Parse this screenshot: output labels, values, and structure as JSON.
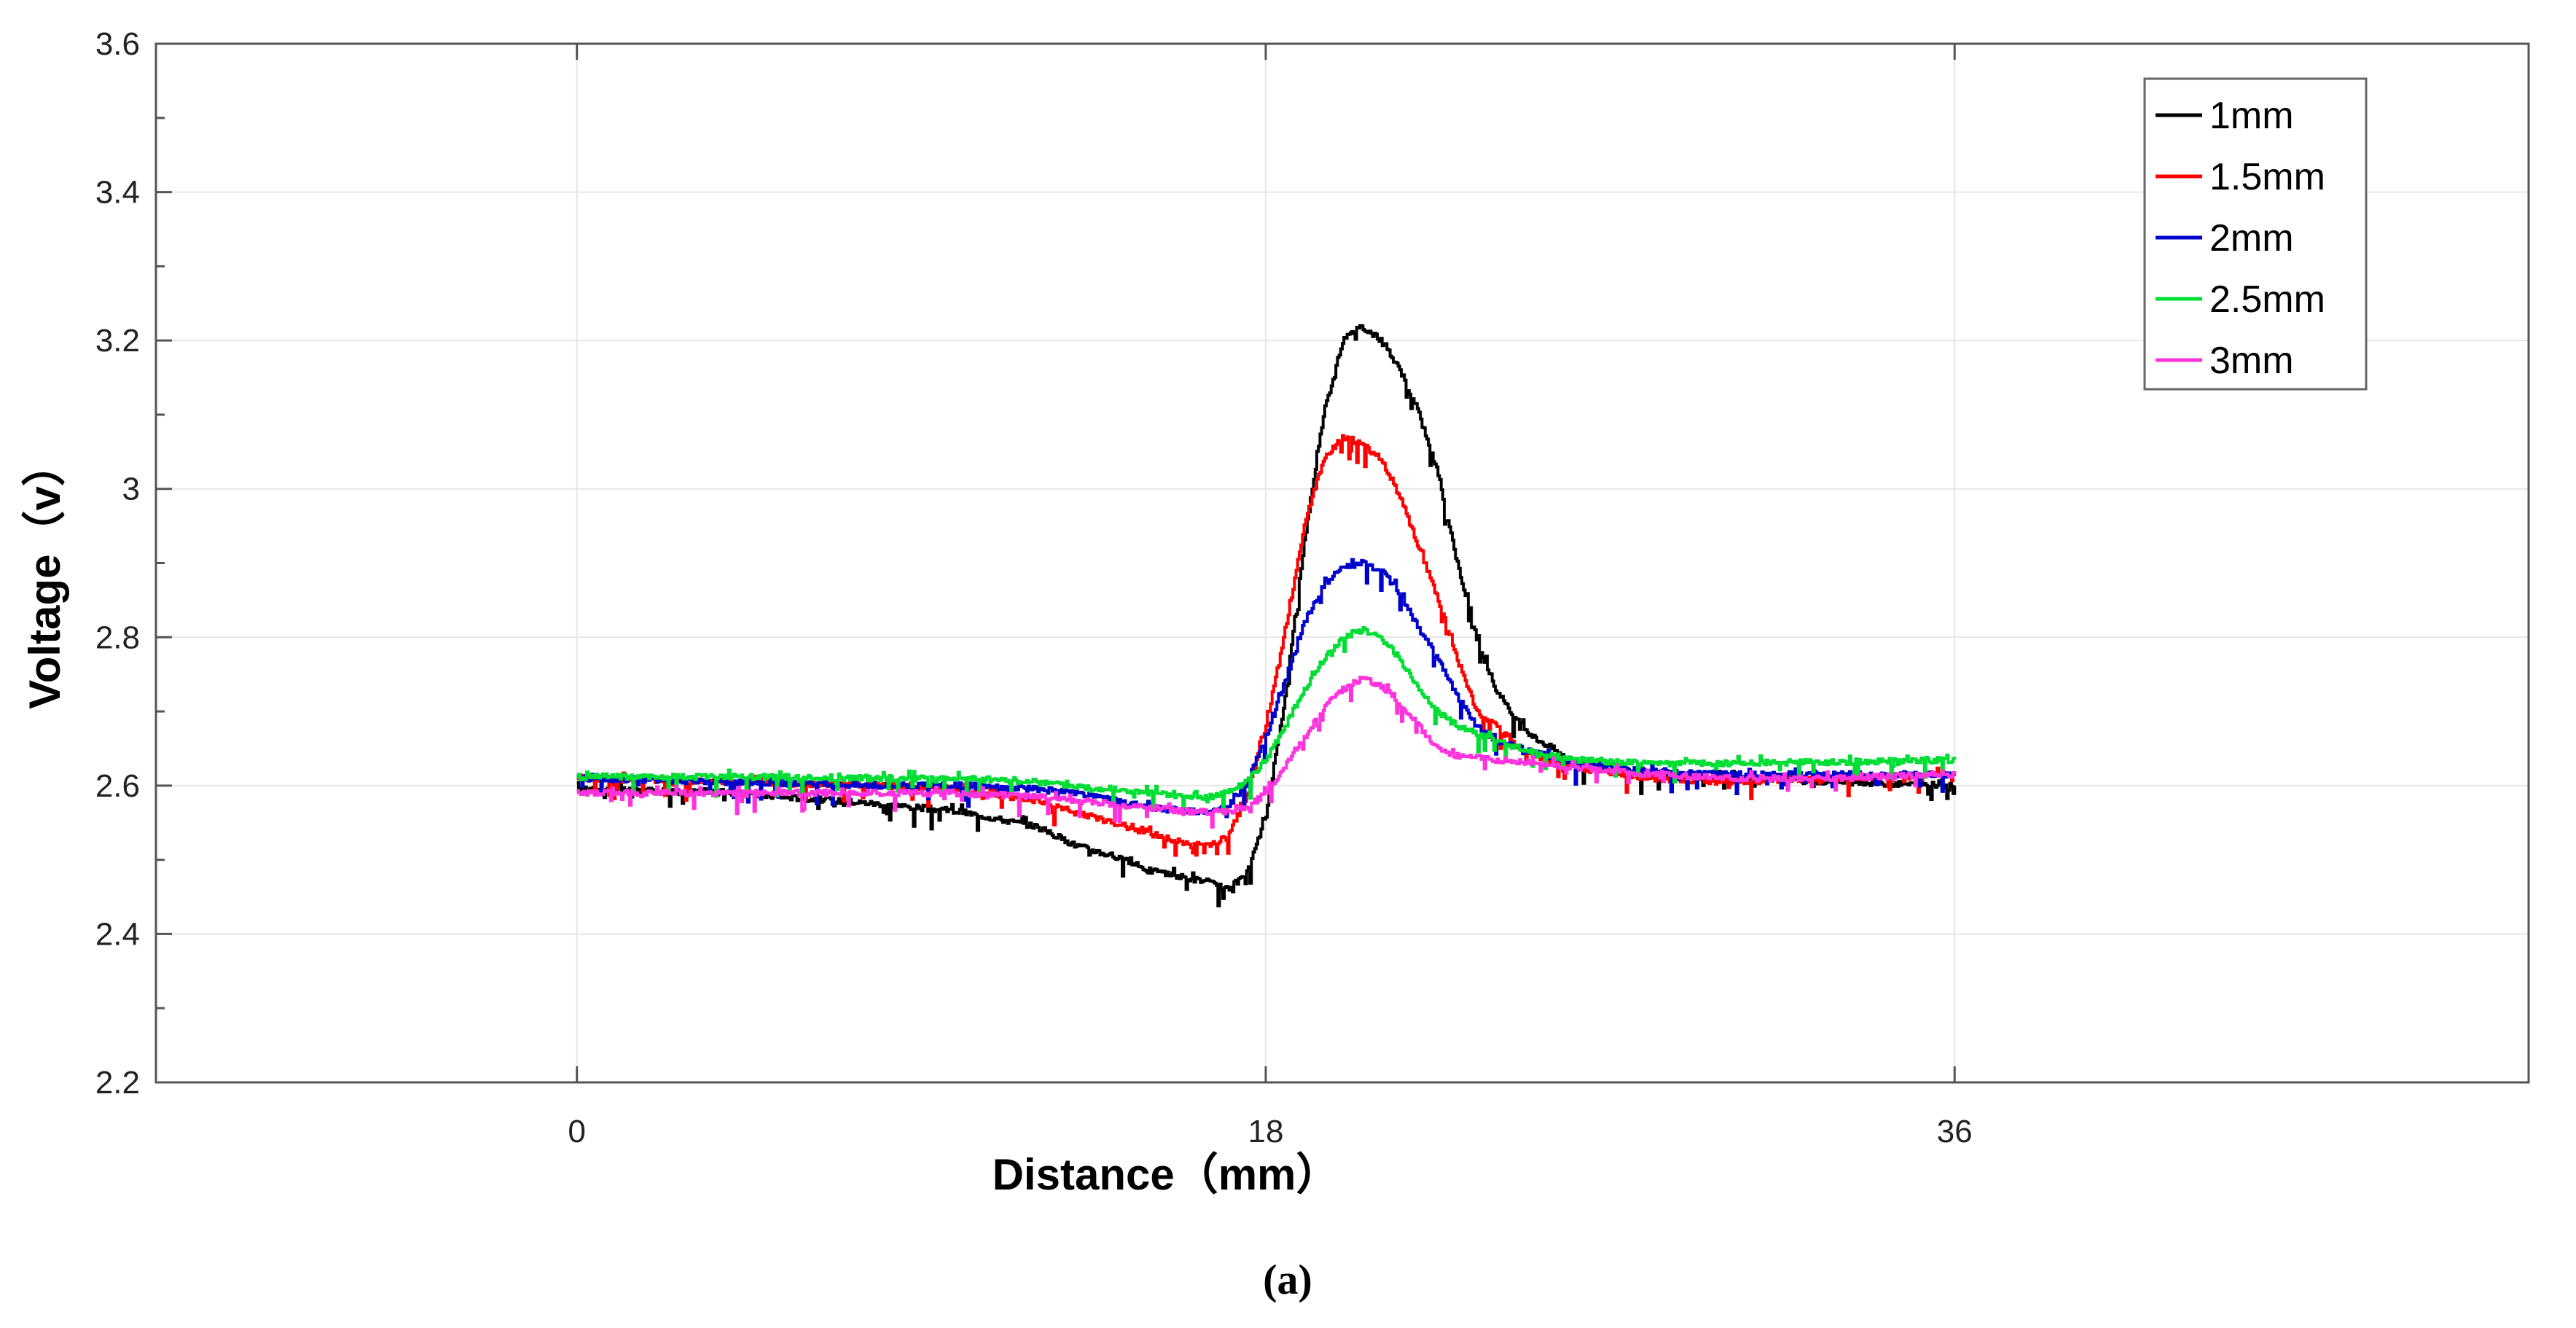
{
  "chart_data": {
    "type": "line",
    "title": "",
    "xlabel": "Distance（mm）",
    "ylabel": "Voltage（v）",
    "caption": "(a)",
    "xlim": [
      -11,
      51
    ],
    "ylim": [
      2.2,
      3.6
    ],
    "xticks": [
      0,
      18,
      36
    ],
    "xtick_labels": [
      "0",
      "18",
      "36"
    ],
    "yticks": [
      2.2,
      2.4,
      2.6,
      2.8,
      3.0,
      3.2,
      3.4,
      3.6
    ],
    "ytick_labels": [
      "2.2",
      "2.4",
      "2.6",
      "2.8",
      "3",
      "3.2",
      "3.4",
      "3.6"
    ],
    "grid": true,
    "legend_position": "top-right",
    "series": [
      {
        "name": "1mm",
        "color": "#000000",
        "x": [
          0,
          4,
          8,
          10,
          12,
          13,
          14,
          15,
          16,
          16.5,
          17,
          17.5,
          18,
          18.5,
          19,
          19.5,
          20,
          20.5,
          21,
          21.5,
          22,
          22.5,
          23,
          23.5,
          24,
          24.5,
          25,
          25.5,
          26,
          28,
          30,
          33,
          36
        ],
        "y": [
          2.595,
          2.59,
          2.575,
          2.565,
          2.545,
          2.52,
          2.505,
          2.485,
          2.475,
          2.47,
          2.46,
          2.48,
          2.56,
          2.72,
          2.93,
          3.1,
          3.2,
          3.22,
          3.2,
          3.16,
          3.1,
          3.02,
          2.9,
          2.8,
          2.73,
          2.69,
          2.665,
          2.65,
          2.63,
          2.615,
          2.61,
          2.605,
          2.6
        ]
      },
      {
        "name": "1.5mm",
        "color": "#ff0000",
        "x": [
          0,
          4,
          8,
          10,
          12,
          13,
          14,
          15,
          16,
          16.5,
          17,
          17.5,
          18,
          18.5,
          19,
          19.5,
          20,
          20.5,
          21,
          21.5,
          22,
          22.5,
          23,
          23.5,
          24,
          24.5,
          25,
          26,
          28,
          30,
          33,
          36
        ],
        "y": [
          2.61,
          2.605,
          2.6,
          2.595,
          2.58,
          2.565,
          2.55,
          2.535,
          2.52,
          2.52,
          2.53,
          2.59,
          2.68,
          2.81,
          2.95,
          3.04,
          3.07,
          3.06,
          3.04,
          2.99,
          2.92,
          2.85,
          2.77,
          2.7,
          2.68,
          2.655,
          2.64,
          2.625,
          2.61,
          2.605,
          2.61,
          2.615
        ]
      },
      {
        "name": "2mm",
        "color": "#0000cc",
        "x": [
          0,
          4,
          8,
          10,
          12,
          13,
          14,
          15,
          16,
          16.5,
          17,
          17.5,
          18,
          18.5,
          19,
          19.5,
          20,
          20.5,
          21,
          21.5,
          22,
          22.5,
          23,
          23.5,
          24,
          25,
          26,
          28,
          30,
          33,
          36
        ],
        "y": [
          2.61,
          2.605,
          2.6,
          2.6,
          2.595,
          2.59,
          2.58,
          2.57,
          2.565,
          2.565,
          2.57,
          2.605,
          2.665,
          2.74,
          2.82,
          2.87,
          2.895,
          2.9,
          2.89,
          2.86,
          2.81,
          2.77,
          2.72,
          2.68,
          2.66,
          2.645,
          2.63,
          2.62,
          2.615,
          2.615,
          2.615
        ]
      },
      {
        "name": "2.5mm",
        "color": "#00dd33",
        "x": [
          0,
          4,
          8,
          10,
          12,
          14,
          15,
          16,
          16.5,
          17,
          17.5,
          18,
          18.5,
          19,
          19.5,
          20,
          20.5,
          21,
          21.5,
          22,
          22.5,
          23,
          24,
          25,
          26,
          28,
          30,
          33,
          36
        ],
        "y": [
          2.612,
          2.612,
          2.61,
          2.61,
          2.605,
          2.595,
          2.59,
          2.585,
          2.585,
          2.59,
          2.605,
          2.635,
          2.68,
          2.73,
          2.77,
          2.8,
          2.81,
          2.8,
          2.77,
          2.73,
          2.7,
          2.68,
          2.66,
          2.645,
          2.635,
          2.63,
          2.63,
          2.632,
          2.635
        ]
      },
      {
        "name": "3mm",
        "color": "#ff33dd",
        "x": [
          0,
          4,
          8,
          10,
          12,
          14,
          15,
          16,
          16.5,
          17,
          17.5,
          18,
          18.5,
          19,
          19.5,
          20,
          20.5,
          21,
          21.5,
          22,
          22.5,
          23,
          24,
          25,
          26,
          28,
          30,
          33,
          36
        ],
        "y": [
          2.59,
          2.59,
          2.59,
          2.59,
          2.585,
          2.575,
          2.57,
          2.565,
          2.565,
          2.565,
          2.57,
          2.59,
          2.625,
          2.665,
          2.705,
          2.73,
          2.745,
          2.735,
          2.71,
          2.68,
          2.65,
          2.64,
          2.635,
          2.63,
          2.625,
          2.615,
          2.61,
          2.61,
          2.615
        ]
      }
    ]
  }
}
